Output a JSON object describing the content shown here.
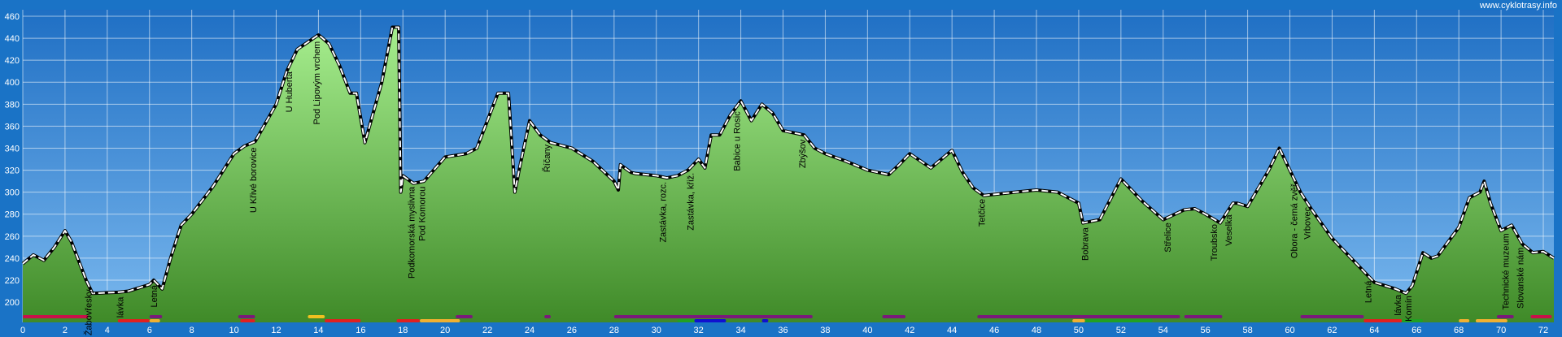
{
  "chart_data": {
    "type": "area",
    "watermark": "www.cyklotrasy.info",
    "x": [
      0,
      0.5,
      1,
      1.5,
      2,
      2.3,
      3,
      3.3,
      4.5,
      5,
      6,
      6.2,
      6.6,
      7,
      7.5,
      8,
      9,
      10,
      10.5,
      11,
      12,
      12.5,
      13,
      14,
      14.2,
      14.5,
      15,
      15.5,
      15.8,
      16.2,
      17,
      17.5,
      17.8,
      17.9,
      18,
      18.5,
      19,
      20,
      21,
      21.5,
      22,
      22.5,
      23,
      23.3,
      23.5,
      24,
      24.5,
      25,
      26,
      27,
      28,
      28.2,
      28.3,
      28.8,
      29,
      30,
      30.5,
      31,
      31.5,
      32,
      32.3,
      32.6,
      33,
      33.5,
      34,
      34.5,
      35,
      35.5,
      36,
      37,
      37.5,
      38,
      39,
      40,
      41,
      41.5,
      42,
      43,
      44,
      44.5,
      45,
      45.5,
      46,
      47,
      48,
      49,
      50,
      50.2,
      51,
      52,
      53,
      54,
      55,
      55.5,
      56,
      56.7,
      57.3,
      57.5,
      58,
      59,
      59.5,
      60,
      60.5,
      61,
      62,
      63,
      64,
      65,
      65.5,
      65.8,
      66.3,
      66.7,
      67,
      68,
      68.5,
      69,
      69.2,
      69.5,
      70,
      70.5,
      71,
      71.5,
      72,
      72.5
    ],
    "y": [
      235,
      243,
      238,
      250,
      265,
      255,
      220,
      208,
      209,
      210,
      216,
      220,
      212,
      240,
      270,
      280,
      305,
      335,
      342,
      346,
      380,
      410,
      430,
      443,
      440,
      435,
      415,
      390,
      390,
      345,
      400,
      450,
      450,
      300,
      315,
      308,
      310,
      332,
      335,
      340,
      365,
      390,
      390,
      300,
      320,
      365,
      352,
      345,
      340,
      328,
      310,
      302,
      325,
      318,
      317,
      315,
      313,
      315,
      320,
      330,
      322,
      352,
      352,
      370,
      383,
      365,
      380,
      372,
      356,
      352,
      340,
      335,
      328,
      320,
      316,
      325,
      335,
      322,
      338,
      318,
      304,
      297,
      298,
      300,
      302,
      300,
      290,
      272,
      275,
      312,
      292,
      275,
      284,
      285,
      280,
      272,
      290,
      290,
      287,
      320,
      340,
      320,
      300,
      285,
      258,
      238,
      218,
      212,
      208,
      215,
      245,
      240,
      242,
      268,
      295,
      300,
      310,
      290,
      265,
      270,
      253,
      245,
      246,
      240
    ],
    "places": [
      {
        "text": "Žabovřesky",
        "x": 3.1
      },
      {
        "text": "lávka",
        "x": 4.6
      },
      {
        "text": "Letná",
        "x": 6.2
      },
      {
        "text": "U Křivé borovice",
        "x": 10.9
      },
      {
        "text": "U Huberta",
        "x": 12.6
      },
      {
        "text": "Pod Lipovým vrchem",
        "x": 13.9
      },
      {
        "text": "Podkomorská myslivna",
        "x": 18.4
      },
      {
        "text": "Pod Komorou",
        "x": 18.9
      },
      {
        "text": "Říčany",
        "x": 24.8
      },
      {
        "text": "Zastávka, rozc.",
        "x": 30.3
      },
      {
        "text": "Zastávka, křiž.",
        "x": 31.6
      },
      {
        "text": "Babice u Rosic",
        "x": 33.8
      },
      {
        "text": "Zbýšov",
        "x": 36.9
      },
      {
        "text": "Tetčice",
        "x": 45.4
      },
      {
        "text": "Bobrava",
        "x": 50.3
      },
      {
        "text": "Střelice",
        "x": 54.2
      },
      {
        "text": "Troubsko",
        "x": 56.4
      },
      {
        "text": "Veselka",
        "x": 57.1
      },
      {
        "text": "Obora - černá zvěř",
        "x": 60.2
      },
      {
        "text": "Vrbovec",
        "x": 60.8
      },
      {
        "text": "Letná",
        "x": 63.7
      },
      {
        "text": "lávka",
        "x": 65.1
      },
      {
        "text": "Komín",
        "x": 65.6
      },
      {
        "text": "Technické muzeum",
        "x": 70.2
      },
      {
        "text": "Slovanské nám.",
        "x": 70.9
      }
    ],
    "tracks": [
      {
        "row": 1,
        "color": "#c8104a",
        "start": 0,
        "end": 3.1
      },
      {
        "row": 1,
        "color": "#7a1a7a",
        "start": 6,
        "end": 6.6
      },
      {
        "row": 1,
        "color": "#7a1a7a",
        "start": 10.2,
        "end": 11
      },
      {
        "row": 1,
        "color": "#f0c020",
        "start": 13.5,
        "end": 14.3
      },
      {
        "row": 1,
        "color": "#7a1a7a",
        "start": 20.5,
        "end": 21.3
      },
      {
        "row": 1,
        "color": "#7a1a7a",
        "start": 24.7,
        "end": 25
      },
      {
        "row": 1,
        "color": "#7a1a7a",
        "start": 28,
        "end": 37.4
      },
      {
        "row": 1,
        "color": "#7a1a7a",
        "start": 40.7,
        "end": 41.8
      },
      {
        "row": 1,
        "color": "#7a1a7a",
        "start": 45.2,
        "end": 54.8
      },
      {
        "row": 1,
        "color": "#7a1a7a",
        "start": 55,
        "end": 56.8
      },
      {
        "row": 1,
        "color": "#7a1a7a",
        "start": 60.5,
        "end": 63.5
      },
      {
        "row": 1,
        "color": "#7a1a7a",
        "start": 69.8,
        "end": 70.6
      },
      {
        "row": 1,
        "color": "#c8104a",
        "start": 71.4,
        "end": 72.4
      },
      {
        "row": 2,
        "color": "#e02020",
        "start": 4.5,
        "end": 6
      },
      {
        "row": 2,
        "color": "#f0b030",
        "start": 6,
        "end": 6.5
      },
      {
        "row": 2,
        "color": "#e02020",
        "start": 10.3,
        "end": 11
      },
      {
        "row": 2,
        "color": "#e02020",
        "start": 14.3,
        "end": 16
      },
      {
        "row": 2,
        "color": "#e02020",
        "start": 17.7,
        "end": 18.8
      },
      {
        "row": 2,
        "color": "#f0b030",
        "start": 18.8,
        "end": 20.7
      },
      {
        "row": 2,
        "color": "#22a022",
        "start": 31,
        "end": 32.2
      },
      {
        "row": 2,
        "color": "#1010d0",
        "start": 31.8,
        "end": 33.3
      },
      {
        "row": 2,
        "color": "#1010d0",
        "start": 35,
        "end": 35.3
      },
      {
        "row": 2,
        "color": "#f0b030",
        "start": 49.7,
        "end": 50.3
      },
      {
        "row": 2,
        "color": "#22a022",
        "start": 50.3,
        "end": 53.5
      },
      {
        "row": 2,
        "color": "#e02020",
        "start": 63.5,
        "end": 65.3
      },
      {
        "row": 2,
        "color": "#22a022",
        "start": 65.3,
        "end": 66.3
      },
      {
        "row": 2,
        "color": "#f0b030",
        "start": 68,
        "end": 68.5
      },
      {
        "row": 2,
        "color": "#f0b030",
        "start": 68.8,
        "end": 70.3
      }
    ],
    "xlim": [
      0,
      72.5
    ],
    "ylim": [
      181.6,
      465.9
    ],
    "xticks": [
      0,
      2,
      4,
      6,
      8,
      10,
      12,
      14,
      16,
      18,
      20,
      22,
      24,
      26,
      28,
      30,
      32,
      34,
      36,
      38,
      40,
      42,
      44,
      46,
      48,
      50,
      52,
      54,
      56,
      58,
      60,
      62,
      64,
      66,
      68,
      70,
      72
    ],
    "yticks": [
      200,
      220,
      240,
      260,
      280,
      300,
      320,
      340,
      360,
      380,
      400,
      420,
      440,
      460
    ],
    "grid": true,
    "color": "#7cd468"
  }
}
